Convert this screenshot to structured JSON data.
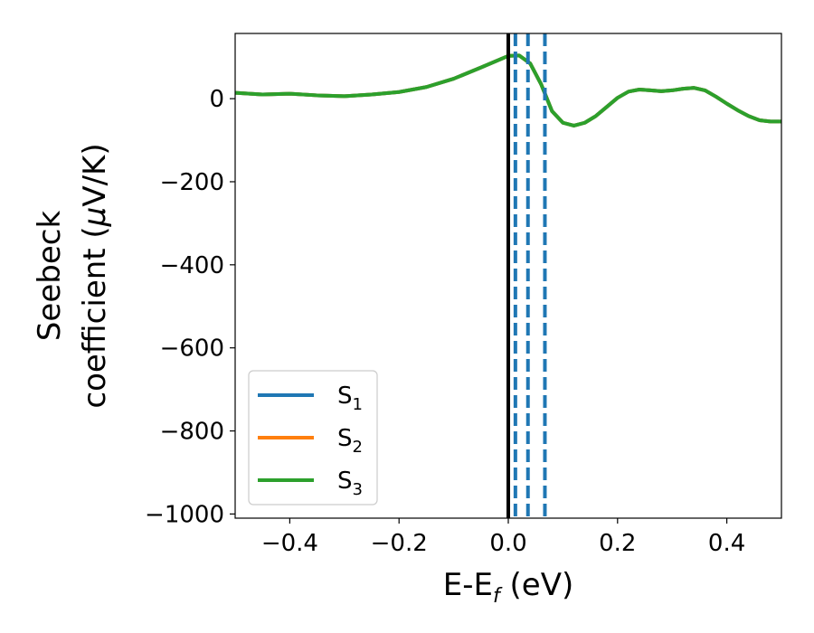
{
  "chart_data": {
    "type": "line",
    "xlabel": "E-E",
    "xlabel_sub": "f",
    "xlabel_unit": " (eV)",
    "ylabel_line1": "Seebeck",
    "ylabel_line2_prefix": "coefficient  (",
    "ylabel_mu": "μ",
    "ylabel_line2_suffix": "V/K)",
    "xlim": [
      -0.5,
      0.5
    ],
    "ylim": [
      -1010,
      157
    ],
    "x_ticks": [
      -0.4,
      -0.2,
      0.0,
      0.2,
      0.4
    ],
    "x_tick_labels": [
      "−0.4",
      "−0.2",
      "0.0",
      "0.2",
      "0.4"
    ],
    "y_ticks": [
      0,
      -200,
      -400,
      -600,
      -800,
      -1000
    ],
    "y_tick_labels": [
      "0",
      "−200",
      "−400",
      "−600",
      "−800",
      "−1000"
    ],
    "grid": false,
    "legend": "bottom-left",
    "series": [
      {
        "name": "S",
        "sub": "1",
        "color": "#1f77b4",
        "x": [
          -0.5,
          -0.45,
          -0.4,
          -0.35,
          -0.3,
          -0.25,
          -0.2,
          -0.15,
          -0.1,
          -0.05,
          0.0,
          0.02,
          0.04,
          0.06,
          0.08,
          0.1,
          0.12,
          0.14,
          0.16,
          0.18,
          0.2,
          0.22,
          0.24,
          0.26,
          0.28,
          0.3,
          0.32,
          0.34,
          0.36,
          0.38,
          0.4,
          0.42,
          0.44,
          0.46,
          0.48,
          0.5
        ],
        "y": [
          14,
          10,
          12,
          8,
          6,
          10,
          16,
          28,
          48,
          75,
          103,
          104,
          85,
          35,
          -30,
          -58,
          -65,
          -58,
          -42,
          -20,
          2,
          17,
          22,
          20,
          18,
          20,
          24,
          26,
          20,
          5,
          -12,
          -28,
          -42,
          -52,
          -55,
          -55
        ]
      },
      {
        "name": "S",
        "sub": "2",
        "color": "#ff7f0e",
        "x": [
          -0.5,
          -0.45,
          -0.4,
          -0.35,
          -0.3,
          -0.25,
          -0.2,
          -0.15,
          -0.1,
          -0.05,
          0.0,
          0.02,
          0.04,
          0.06,
          0.08,
          0.1,
          0.12,
          0.14,
          0.16,
          0.18,
          0.2,
          0.22,
          0.24,
          0.26,
          0.28,
          0.3,
          0.32,
          0.34,
          0.36,
          0.38,
          0.4,
          0.42,
          0.44,
          0.46,
          0.48,
          0.5
        ],
        "y": [
          14,
          10,
          12,
          8,
          6,
          10,
          16,
          28,
          48,
          75,
          103,
          104,
          85,
          35,
          -30,
          -58,
          -65,
          -58,
          -42,
          -20,
          2,
          17,
          22,
          20,
          18,
          20,
          24,
          26,
          20,
          5,
          -12,
          -28,
          -42,
          -52,
          -55,
          -55
        ]
      },
      {
        "name": "S",
        "sub": "3",
        "color": "#2ca02c",
        "x": [
          -0.5,
          -0.45,
          -0.4,
          -0.35,
          -0.3,
          -0.25,
          -0.2,
          -0.15,
          -0.1,
          -0.05,
          0.0,
          0.02,
          0.04,
          0.06,
          0.08,
          0.1,
          0.12,
          0.14,
          0.16,
          0.18,
          0.2,
          0.22,
          0.24,
          0.26,
          0.28,
          0.3,
          0.32,
          0.34,
          0.36,
          0.38,
          0.4,
          0.42,
          0.44,
          0.46,
          0.48,
          0.5
        ],
        "y": [
          14,
          10,
          12,
          8,
          6,
          10,
          16,
          28,
          48,
          75,
          103,
          104,
          85,
          35,
          -30,
          -58,
          -65,
          -58,
          -42,
          -20,
          2,
          17,
          22,
          20,
          18,
          20,
          24,
          26,
          20,
          5,
          -12,
          -28,
          -42,
          -52,
          -55,
          -55
        ]
      }
    ],
    "vlines": [
      {
        "x": 0.0,
        "color": "#000000",
        "style": "solid"
      },
      {
        "x": 0.013,
        "color": "#1f77b4",
        "style": "dashed"
      },
      {
        "x": 0.036,
        "color": "#1f77b4",
        "style": "dashed"
      },
      {
        "x": 0.067,
        "color": "#1f77b4",
        "style": "dashed"
      }
    ]
  }
}
